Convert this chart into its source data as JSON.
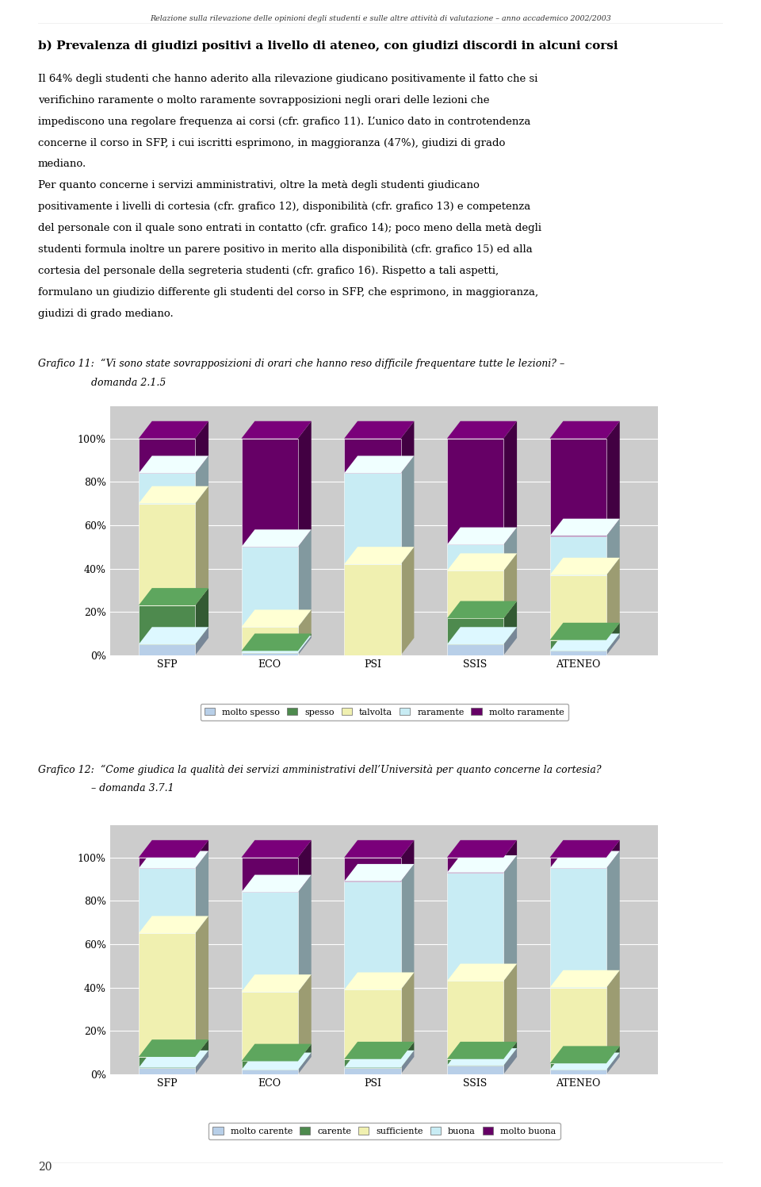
{
  "header": "Relazione sulla rilevazione delle opinioni degli studenti e sulle altre attività di valutazione – anno accademico 2002/2003",
  "page_number": "20",
  "title_b": "b) Prevalenza di giudizi positivi a livello di ateneo, con giudizi discordi in alcuni corsi",
  "paragraph1": "Il 64% degli studenti che hanno aderito alla rilevazione giudicano positivamente il fatto che si verifichino raramente o molto raramente sovrapposizioni negli orari delle lezioni che impediscono una regolare frequenza ai corsi (cfr. grafico 11). L’unico dato in controtendenza concerne il corso in SFP, i cui iscritti esprimono, in maggioranza (47%), giudizi di grado mediano.",
  "paragraph2": "Per quanto concerne i servizi amministrativi, oltre la metà degli studenti giudicano positivamente i livelli di cortesia (cfr. grafico 12), disponibilità (cfr. grafico 13) e competenza del personale con il quale sono entrati in contatto (cfr. grafico 14); poco meno della metà degli studenti formula inoltre un parere positivo in merito alla disponibilità (cfr. grafico 15) ed alla cortesia del personale della segreteria studenti (cfr. grafico 16). Rispetto a tali aspetti, formulano un giudizio differente gli studenti del corso in SFP, che esprimono, in maggioranza, giudizi di grado mediano.",
  "chart1_caption_line1": "Grafico 11:  “Vi sono state sovrapposizioni di orari che hanno reso difficile frequentare tutte le lezioni? –",
  "chart1_caption_line2": "domanda 2.1.5",
  "chart2_caption_line1": "Grafico 12:  “Come giudica la qualità dei servizi amministrativi dell’Università per quanto concerne la cortesia?",
  "chart2_caption_line2": "– domanda 3.7.1",
  "chart1_categories": [
    "SFP",
    "ECO",
    "PSI",
    "SSIS",
    "ATENEO"
  ],
  "chart1_data": {
    "molto spesso": [
      5,
      1,
      0,
      5,
      2
    ],
    "spesso": [
      18,
      1,
      0,
      12,
      5
    ],
    "talvolta": [
      47,
      11,
      42,
      22,
      30
    ],
    "raramente": [
      14,
      37,
      42,
      12,
      18
    ],
    "molto raramente": [
      16,
      50,
      16,
      49,
      45
    ]
  },
  "chart1_colors": {
    "molto spesso": "#b8cfe8",
    "spesso": "#4e8a4e",
    "talvolta": "#f0f0b0",
    "raramente": "#c8ecf4",
    "molto raramente": "#660066"
  },
  "chart1_legend": [
    "molto spesso",
    "spesso",
    "talvolta",
    "raramente",
    "molto raramente"
  ],
  "chart2_categories": [
    "SFP",
    "ECO",
    "PSI",
    "SSIS",
    "ATENEO"
  ],
  "chart2_data": {
    "molto carente": [
      3,
      2,
      3,
      4,
      2
    ],
    "carente": [
      5,
      4,
      4,
      3,
      3
    ],
    "sufficiente": [
      57,
      32,
      32,
      36,
      35
    ],
    "buona": [
      30,
      46,
      50,
      50,
      55
    ],
    "molto buona": [
      5,
      16,
      11,
      7,
      5
    ]
  },
  "chart2_colors": {
    "molto carente": "#b8cfe8",
    "carente": "#4e8a4e",
    "sufficiente": "#f0f0b0",
    "buona": "#c8ecf4",
    "molto buona": "#660066"
  },
  "chart2_legend": [
    "molto carente",
    "carente",
    "sufficiente",
    "buona",
    "molto buona"
  ],
  "bg_color": "#ffffff",
  "plot_bg_color": "#cccccc"
}
